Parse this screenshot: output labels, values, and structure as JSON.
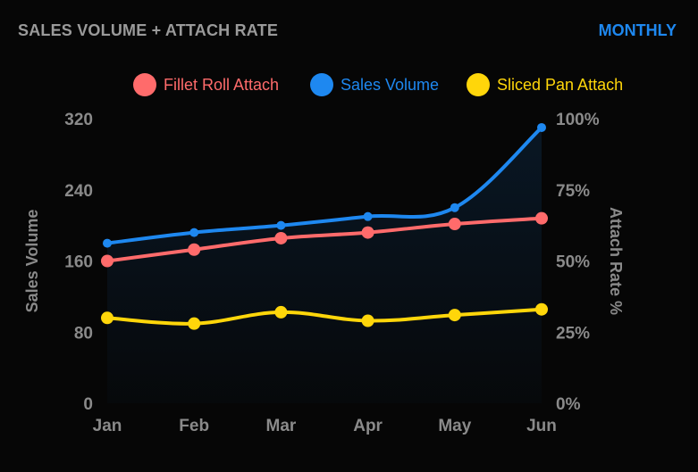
{
  "header": {
    "title": "SALES VOLUME + ATTACH RATE",
    "period_label": "MONTHLY"
  },
  "colors": {
    "background": "#060606",
    "fillet": "#ff6b6b",
    "volume": "#1e88f0",
    "sliced": "#ffd60a",
    "axis_text": "#8a8a8a"
  },
  "chart_data": {
    "type": "line",
    "title": "SALES VOLUME + ATTACH RATE",
    "categories": [
      "Jan",
      "Feb",
      "Mar",
      "Apr",
      "May",
      "Jun"
    ],
    "y_left": {
      "label": "Sales Volume",
      "lim": [
        0,
        320
      ],
      "ticks": [
        "0",
        "80",
        "160",
        "240",
        "320"
      ],
      "tick_values": [
        0,
        80,
        160,
        240,
        320
      ]
    },
    "y_right": {
      "label": "Attach Rate %",
      "lim": [
        0,
        100
      ],
      "ticks": [
        "0%",
        "25%",
        "50%",
        "75%",
        "100%"
      ],
      "tick_values": [
        0,
        25,
        50,
        75,
        100
      ]
    },
    "legend_position": "top-center",
    "grid": false,
    "series": [
      {
        "name": "Fillet Roll Attach",
        "axis": "right",
        "color": "#ff6b6b",
        "values": [
          50,
          54,
          58,
          60,
          63,
          65
        ]
      },
      {
        "name": "Sales Volume",
        "axis": "left",
        "color": "#1e88f0",
        "area": true,
        "values": [
          180,
          192,
          200,
          210,
          220,
          310
        ]
      },
      {
        "name": "Sliced Pan Attach",
        "axis": "right",
        "color": "#ffd60a",
        "values": [
          30,
          28,
          32,
          29,
          31,
          33
        ]
      }
    ]
  }
}
